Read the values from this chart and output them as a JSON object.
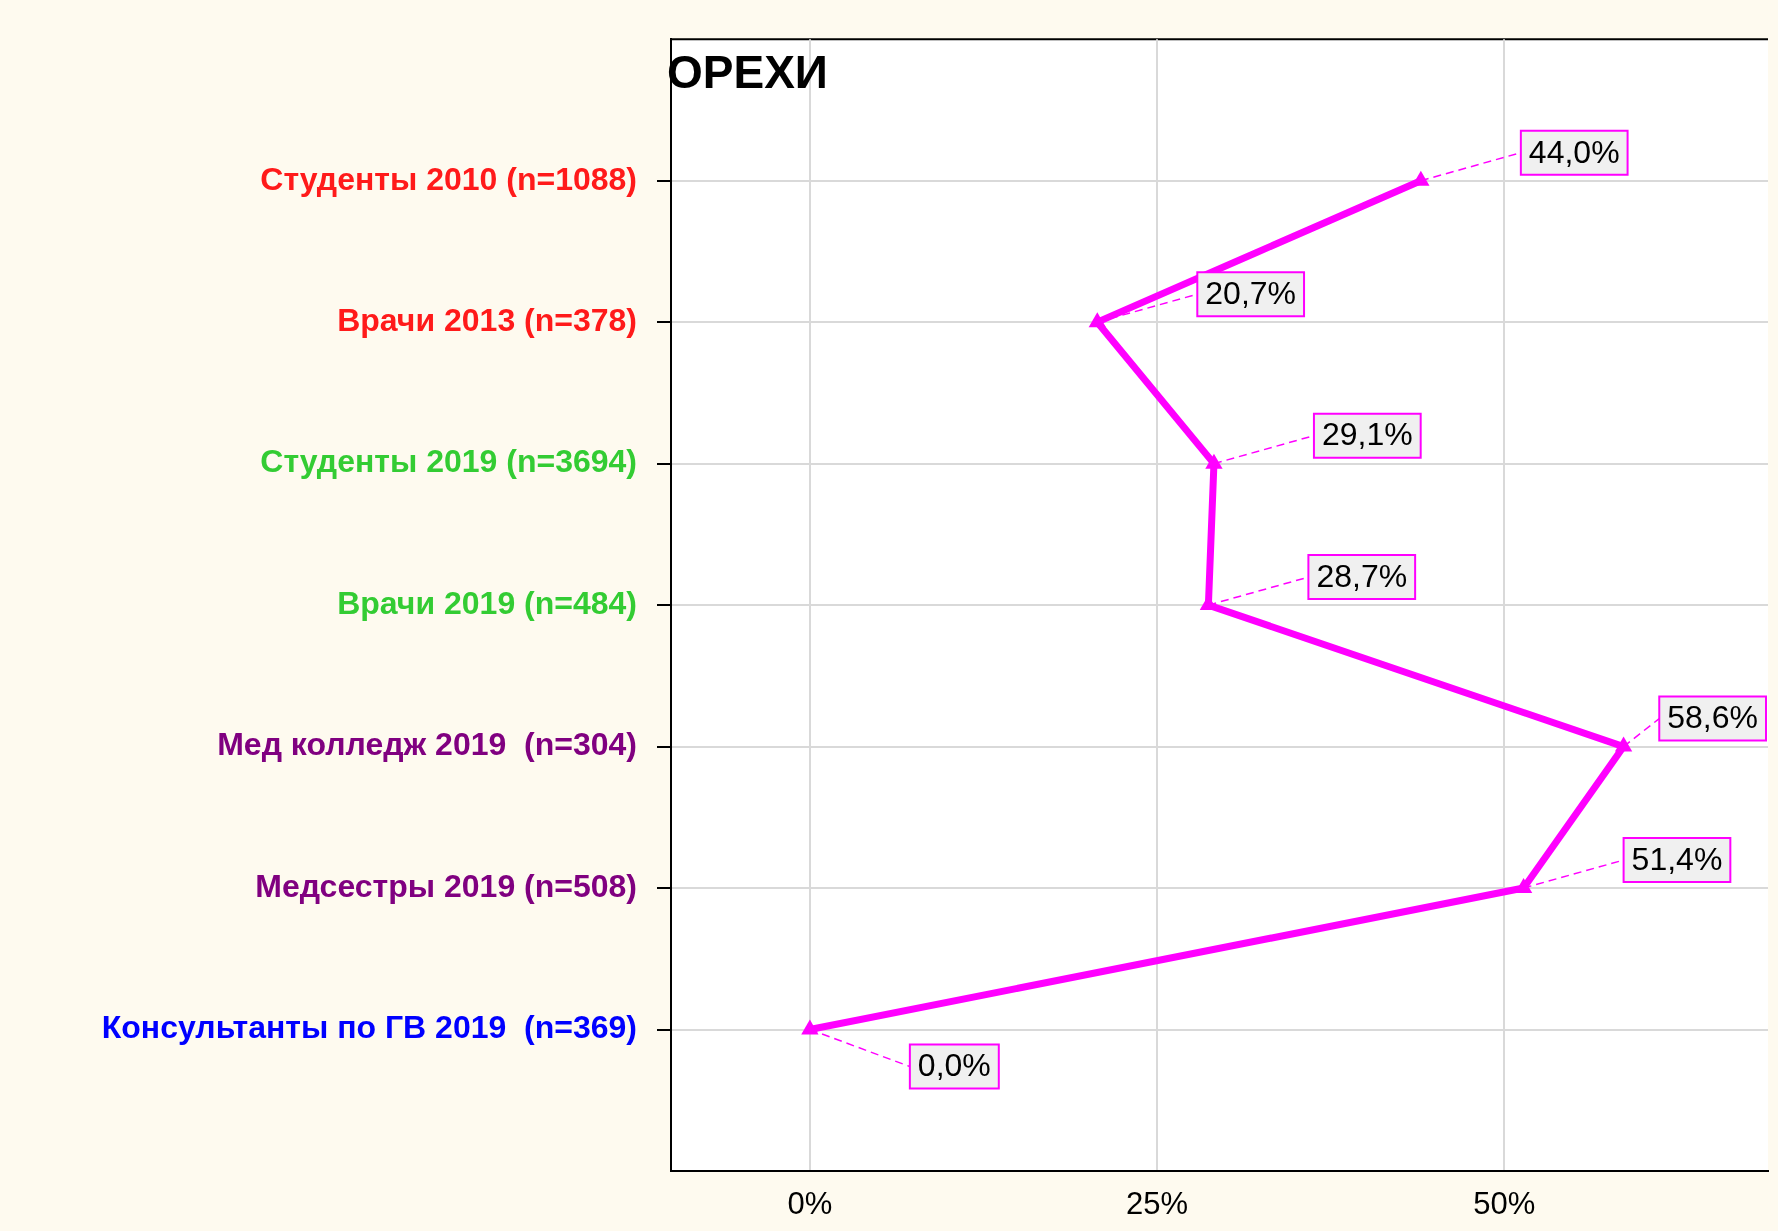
{
  "chart_data": {
    "type": "line",
    "title": "ОРЕХИ",
    "orientation": "horizontal",
    "categories": [
      "Студенты 2010 (n=1088)",
      "Врачи 2013 (n=378)",
      "Студенты 2019 (n=3694)",
      "Врачи 2019 (n=484)",
      "Мед колледж 2019  (n=304)",
      "Медсестры 2019 (n=508)",
      "Консультанты по ГВ 2019  (n=369)"
    ],
    "series": [
      {
        "color": "#ff00ff",
        "values": [
          44.0,
          20.7,
          29.1,
          28.7,
          58.6,
          51.4,
          0.0
        ],
        "value_labels": [
          "44,0%",
          "20,7%",
          "29,1%",
          "28,7%",
          "58,6%",
          "51,4%",
          "0,0%"
        ]
      }
    ],
    "xlim": [
      -10,
      69
    ],
    "xticks": [
      {
        "value": 0,
        "label": "0%"
      },
      {
        "value": 25,
        "label": "25%"
      },
      {
        "value": 50,
        "label": "50%"
      }
    ],
    "grid": true,
    "marker": "triangle",
    "line_style": "solid",
    "legend": false
  }
}
